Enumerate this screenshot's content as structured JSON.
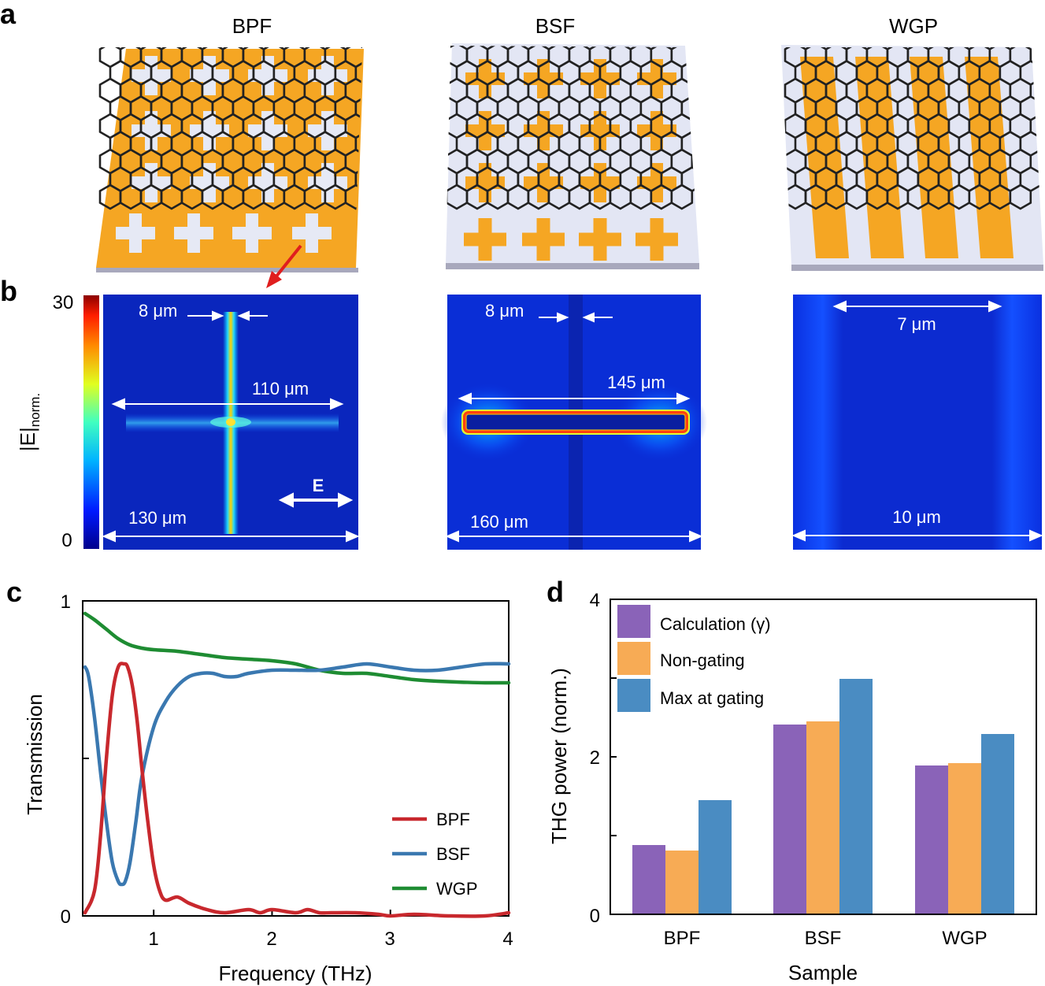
{
  "panel_labels": {
    "a": "a",
    "b": "b",
    "c": "c",
    "d": "d"
  },
  "panel_a": {
    "titles": [
      "BPF",
      "BSF",
      "WGP"
    ]
  },
  "panel_b": {
    "colorbar": {
      "max": "30",
      "min": "0",
      "label_main": "|E|",
      "label_sub": "norm."
    },
    "bpf": {
      "gap": "8 μm",
      "length": "110 μm",
      "period": "130 μm",
      "field_label": "E"
    },
    "bsf": {
      "gap": "8 μm",
      "length": "145 μm",
      "period": "160 μm"
    },
    "wgp": {
      "gap": "7 μm",
      "period": "10 μm"
    }
  },
  "chart_data": [
    {
      "type": "line",
      "panel": "c",
      "xlabel": "Frequency (THz)",
      "ylabel": "Transmission",
      "xlim": [
        0.4,
        4
      ],
      "ylim": [
        0,
        1
      ],
      "xticks": [
        "1",
        "2",
        "3",
        "4"
      ],
      "yticks": [
        "0",
        "1"
      ],
      "series": [
        {
          "name": "BPF",
          "color": "#c8282d",
          "x": [
            0.42,
            0.5,
            0.55,
            0.6,
            0.65,
            0.7,
            0.75,
            0.78,
            0.82,
            0.86,
            0.9,
            0.95,
            1.0,
            1.05,
            1.1,
            1.2,
            1.3,
            1.45,
            1.6,
            1.8,
            1.9,
            2.0,
            2.2,
            2.3,
            2.4,
            2.5,
            2.7,
            2.9,
            3.0,
            3.2,
            3.5,
            3.8,
            4.0
          ],
          "y": [
            0.01,
            0.08,
            0.25,
            0.5,
            0.7,
            0.79,
            0.8,
            0.79,
            0.73,
            0.62,
            0.47,
            0.3,
            0.16,
            0.08,
            0.05,
            0.06,
            0.04,
            0.02,
            0.01,
            0.02,
            0.01,
            0.02,
            0.01,
            0.02,
            0.01,
            0.01,
            0.01,
            0.005,
            0.0,
            0.005,
            0.0,
            0.0,
            0.01
          ]
        },
        {
          "name": "BSF",
          "color": "#3a78b0",
          "x": [
            0.42,
            0.45,
            0.5,
            0.55,
            0.6,
            0.65,
            0.7,
            0.73,
            0.76,
            0.8,
            0.85,
            0.9,
            1.0,
            1.1,
            1.2,
            1.3,
            1.4,
            1.5,
            1.6,
            1.7,
            1.8,
            2.0,
            2.2,
            2.4,
            2.6,
            2.8,
            3.0,
            3.2,
            3.4,
            3.6,
            3.8,
            4.0
          ],
          "y": [
            0.79,
            0.76,
            0.63,
            0.46,
            0.3,
            0.17,
            0.11,
            0.1,
            0.11,
            0.17,
            0.3,
            0.44,
            0.6,
            0.68,
            0.73,
            0.76,
            0.77,
            0.77,
            0.76,
            0.76,
            0.77,
            0.78,
            0.78,
            0.78,
            0.79,
            0.8,
            0.79,
            0.78,
            0.78,
            0.79,
            0.8,
            0.8
          ]
        },
        {
          "name": "WGP",
          "color": "#1e8c32",
          "x": [
            0.42,
            0.5,
            0.6,
            0.7,
            0.8,
            0.9,
            1.0,
            1.2,
            1.4,
            1.6,
            1.8,
            2.0,
            2.2,
            2.4,
            2.6,
            2.8,
            3.0,
            3.2,
            3.4,
            3.6,
            3.8,
            4.0
          ],
          "y": [
            0.96,
            0.94,
            0.91,
            0.88,
            0.86,
            0.85,
            0.845,
            0.84,
            0.83,
            0.82,
            0.815,
            0.81,
            0.8,
            0.78,
            0.77,
            0.77,
            0.76,
            0.75,
            0.745,
            0.742,
            0.74,
            0.74
          ]
        }
      ]
    },
    {
      "type": "bar",
      "panel": "d",
      "xlabel": "Sample",
      "ylabel": "THG power (norm.)",
      "ylim": [
        0,
        4
      ],
      "yticks": [
        "0",
        "2",
        "4"
      ],
      "categories": [
        "BPF",
        "BSF",
        "WGP"
      ],
      "series": [
        {
          "name": "Calculation (γ)",
          "color": "#8a63b8",
          "values": [
            0.88,
            2.41,
            1.89
          ]
        },
        {
          "name": "Non-gating",
          "color": "#f7ab55",
          "values": [
            0.81,
            2.45,
            1.92
          ]
        },
        {
          "name": "Max at gating",
          "color": "#4a8cc2",
          "values": [
            1.45,
            2.99,
            2.29
          ]
        }
      ]
    }
  ]
}
